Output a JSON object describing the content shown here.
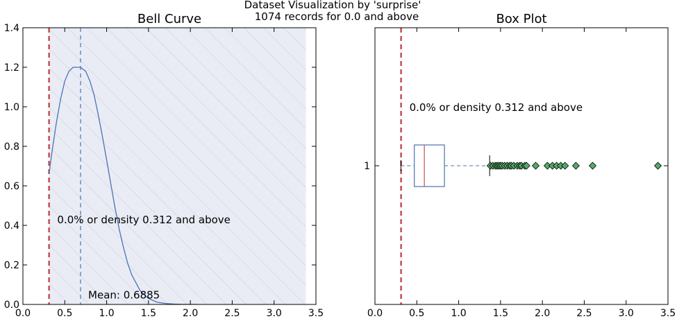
{
  "figure": {
    "suptitle_line1": "Dataset Visualization by 'surprise'",
    "suptitle_line2": "1074 records for 0.0 and above"
  },
  "chart_data": [
    {
      "type": "line",
      "title": "Bell Curve",
      "xlim": [
        0.0,
        3.5
      ],
      "ylim": [
        0.0,
        1.4
      ],
      "xticks": [
        "0.0",
        "0.5",
        "1.0",
        "1.5",
        "2.0",
        "2.5",
        "3.0",
        "3.5"
      ],
      "yticks": [
        "0.0",
        "0.2",
        "0.4",
        "0.6",
        "0.8",
        "1.0",
        "1.2",
        "1.4"
      ],
      "shaded_region": {
        "x_start": 0.312,
        "x_end": 3.38,
        "fill": "#e9ecf5",
        "hatch": "diagonal"
      },
      "threshold_line": {
        "x": 0.312,
        "color": "#c44e52"
      },
      "mean_line": {
        "x": 0.6885,
        "color": "#4c72b0"
      },
      "curve": {
        "color": "#4c72b0",
        "x": [
          0.312,
          0.35,
          0.4,
          0.45,
          0.5,
          0.55,
          0.6,
          0.65,
          0.6885,
          0.75,
          0.8,
          0.85,
          0.9,
          0.95,
          1.0,
          1.05,
          1.1,
          1.15,
          1.2,
          1.25,
          1.3,
          1.4,
          1.5,
          1.6,
          1.7,
          1.8,
          1.9,
          2.0,
          2.1
        ],
        "y": [
          0.66,
          0.78,
          0.92,
          1.04,
          1.13,
          1.18,
          1.2,
          1.2,
          1.2,
          1.18,
          1.13,
          1.06,
          0.96,
          0.85,
          0.73,
          0.61,
          0.49,
          0.38,
          0.29,
          0.21,
          0.15,
          0.07,
          0.03,
          0.012,
          0.005,
          0.002,
          0.0005,
          0.0002,
          0.0
        ]
      },
      "annotations": {
        "threshold_label": "0.0% or density 0.312 and above",
        "threshold_label_at": [
          0.41,
          0.41
        ],
        "mean_label": "Mean: 0.6885",
        "mean_label_at": [
          0.78,
          0.03
        ]
      }
    },
    {
      "type": "box",
      "title": "Box Plot",
      "xlim": [
        0.0,
        3.5
      ],
      "xticks": [
        "0.0",
        "0.5",
        "1.0",
        "1.5",
        "2.0",
        "2.5",
        "3.0",
        "3.5"
      ],
      "yticks": [
        "1"
      ],
      "threshold_line": {
        "x": 0.312,
        "color": "#c44e52"
      },
      "box": {
        "whisker_low": 0.31,
        "q1": 0.47,
        "median": 0.59,
        "q3": 0.83,
        "whisker_high": 1.37,
        "color": "#4c72b0",
        "median_color": "#c44e52"
      },
      "outliers": {
        "color": "#55a868",
        "x": [
          1.38,
          1.41,
          1.44,
          1.46,
          1.48,
          1.5,
          1.52,
          1.55,
          1.58,
          1.61,
          1.63,
          1.66,
          1.7,
          1.73,
          1.75,
          1.79,
          1.81,
          1.92,
          2.06,
          2.12,
          2.17,
          2.22,
          2.27,
          2.4,
          2.6,
          3.38
        ]
      },
      "annotations": {
        "threshold_label": "0.0% or density 0.312 and above"
      }
    }
  ]
}
